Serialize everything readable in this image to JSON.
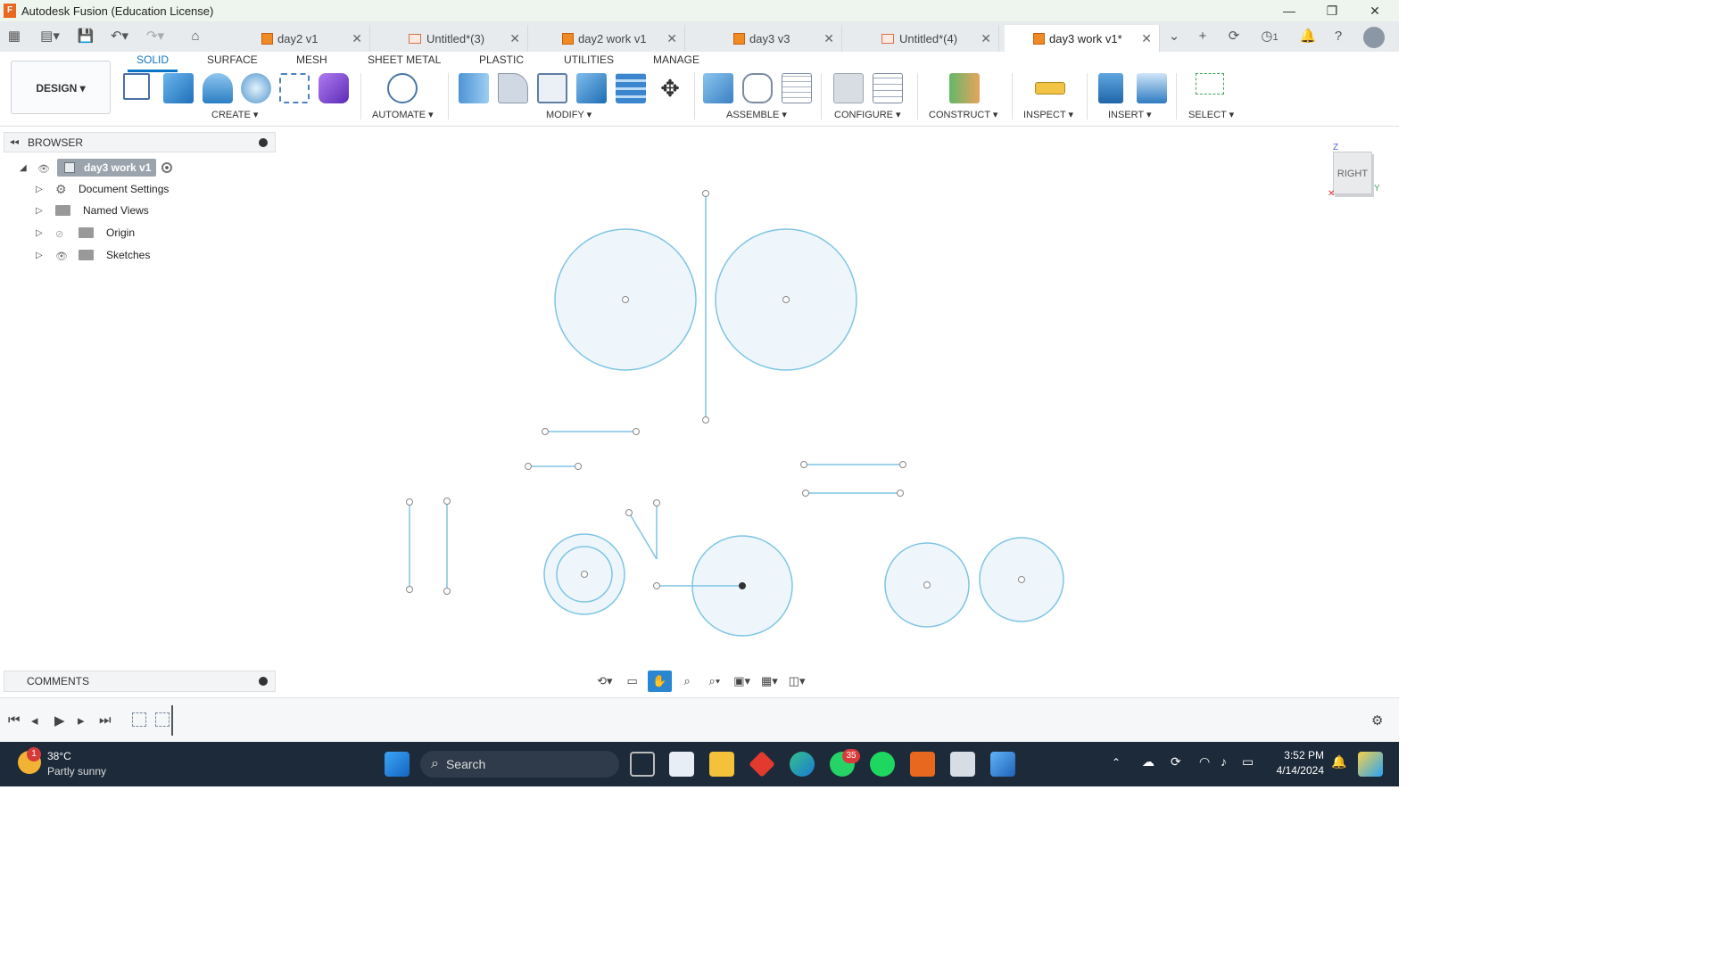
{
  "window": {
    "title": "Autodesk Fusion (Education License)",
    "logo_letter": "F"
  },
  "tabs": [
    {
      "label": "day2 v1",
      "type": "model"
    },
    {
      "label": "Untitled*(3)",
      "type": "sketch"
    },
    {
      "label": "day2 work v1",
      "type": "model"
    },
    {
      "label": "day3 v3",
      "type": "model"
    },
    {
      "label": "Untitled*(4)",
      "type": "sketch"
    },
    {
      "label": "day3 work v1*",
      "type": "model",
      "active": true
    }
  ],
  "header_right": {
    "jobs_count": "1"
  },
  "toolbar": {
    "workspace_button": "DESIGN ▾",
    "workspace_tabs": [
      "SOLID",
      "SURFACE",
      "MESH",
      "SHEET METAL",
      "PLASTIC",
      "UTILITIES",
      "MANAGE"
    ],
    "active_workspace_tab": "SOLID",
    "groups": [
      "CREATE ▾",
      "AUTOMATE ▾",
      "MODIFY ▾",
      "ASSEMBLE ▾",
      "CONFIGURE ▾",
      "CONSTRUCT ▾",
      "INSPECT ▾",
      "INSERT ▾",
      "SELECT ▾"
    ]
  },
  "browser": {
    "title": "BROWSER",
    "root": "day3 work v1",
    "items": [
      "Document Settings",
      "Named Views",
      "Origin",
      "Sketches"
    ]
  },
  "comments": {
    "title": "COMMENTS"
  },
  "viewcube": {
    "face": "RIGHT",
    "axis_z": "Z",
    "axis_y": "Y"
  },
  "sketch": {
    "stroke": "#7ec4e4",
    "fill": "#eef6fb"
  },
  "taskbar": {
    "weather_temp": "38°C",
    "weather_desc": "Partly sunny",
    "weather_badge": "1",
    "search": "Search",
    "whatsapp_badge": "35",
    "time": "3:52 PM",
    "date": "4/14/2024"
  }
}
